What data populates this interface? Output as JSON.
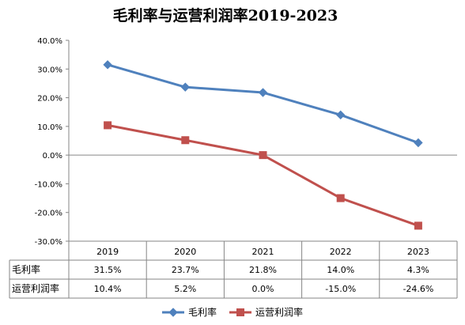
{
  "chart_data": {
    "type": "line",
    "title": "毛利率与运营利润率2019-2023",
    "categories": [
      "2019",
      "2020",
      "2021",
      "2022",
      "2023"
    ],
    "series": [
      {
        "name": "毛利率",
        "values": [
          31.5,
          23.7,
          21.8,
          14.0,
          4.3
        ],
        "labels": [
          "31.5%",
          "23.7%",
          "21.8%",
          "14.0%",
          "4.3%"
        ],
        "color": "#4f81bd",
        "marker": "diamond"
      },
      {
        "name": "运营利润率",
        "values": [
          10.4,
          5.2,
          0.0,
          -15.0,
          -24.6
        ],
        "labels": [
          "10.4%",
          "5.2%",
          "0.0%",
          "-15.0%",
          "-24.6%"
        ],
        "color": "#c0504d",
        "marker": "square"
      }
    ],
    "ylim": [
      -30,
      40
    ],
    "yticks": [
      "40.0%",
      "30.0%",
      "20.0%",
      "10.0%",
      "0.0%",
      "-10.0%",
      "-20.0%",
      "-30.0%"
    ],
    "ytick_values": [
      40,
      30,
      20,
      10,
      0,
      -10,
      -20,
      -30
    ],
    "grid": false,
    "legend": "bottom",
    "data_table": true
  }
}
